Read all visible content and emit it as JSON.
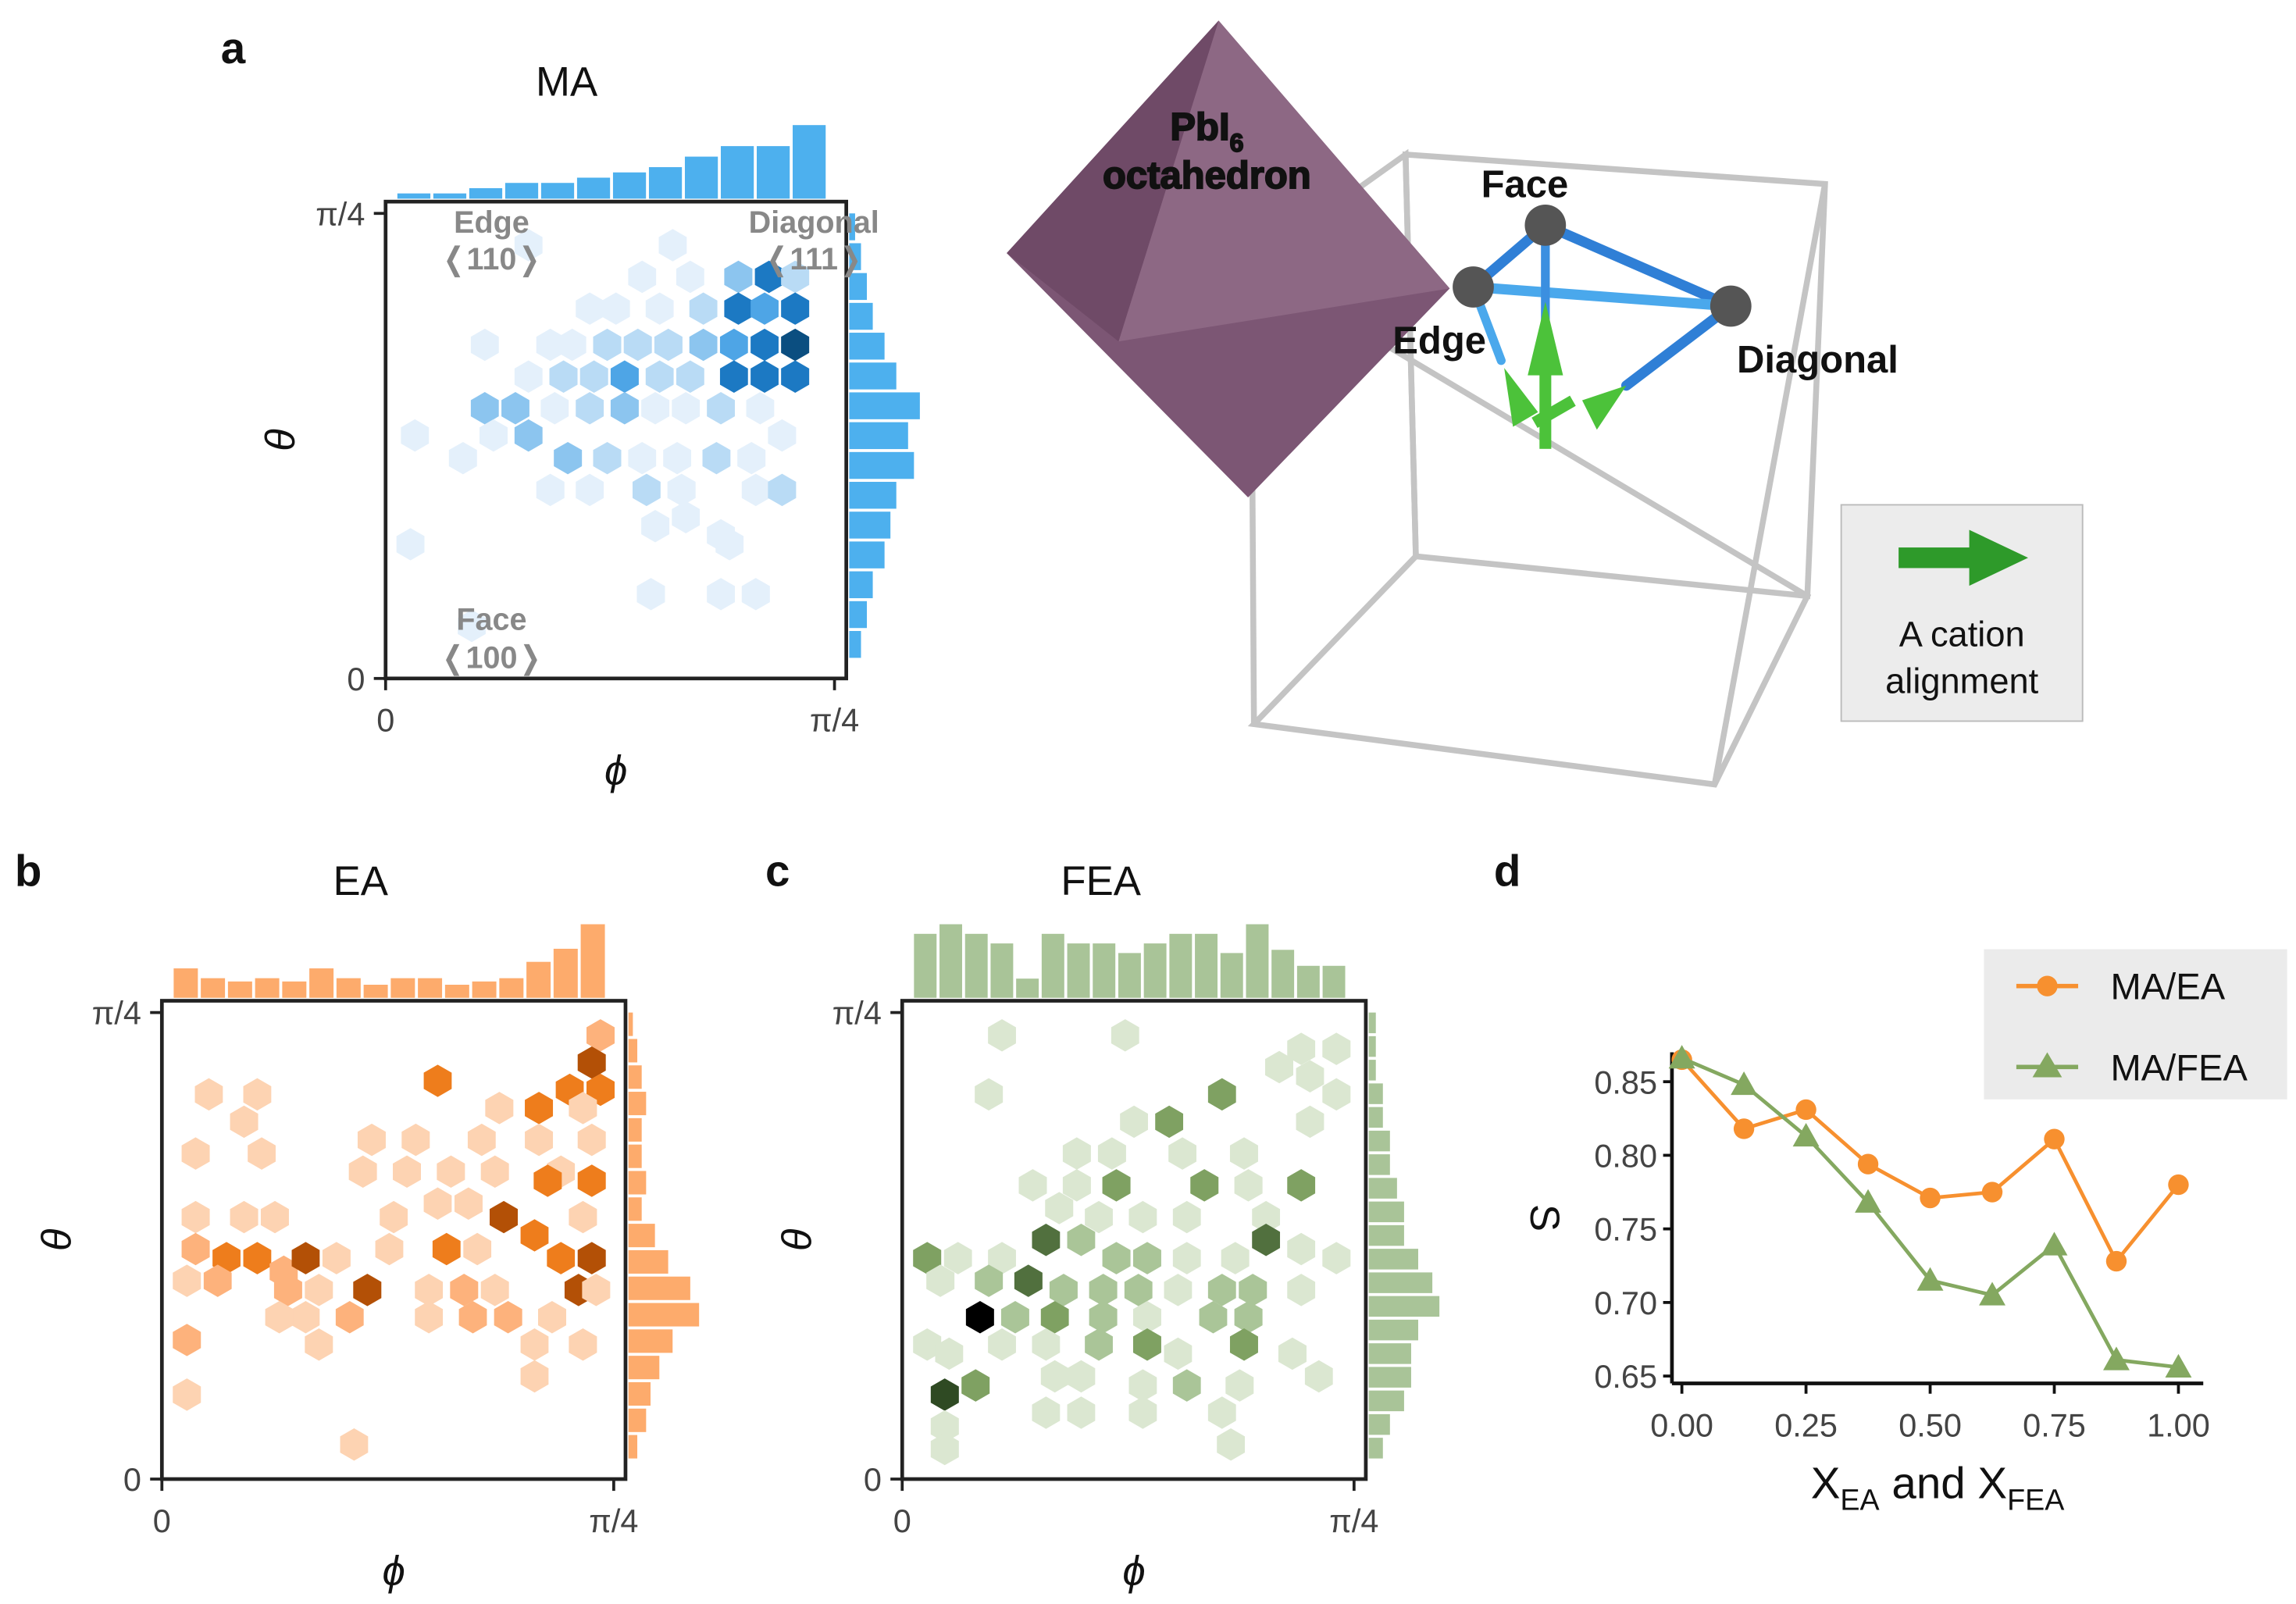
{
  "panels": {
    "a": "a",
    "b": "b",
    "c": "c",
    "d": "d"
  },
  "colors": {
    "blue": [
      "#e4f0fb",
      "#b9dbf5",
      "#8cc5ef",
      "#4ea5e6",
      "#1c79c3",
      "#0b4e80",
      "#000000"
    ],
    "orange": [
      "#fdd3b2",
      "#fdb27c",
      "#ee7d1c",
      "#b35006",
      "#6d3102",
      "#000000"
    ],
    "green": [
      "#dbe7d1",
      "#aac598",
      "#7fa162",
      "#51703e",
      "#2f4a23",
      "#000000"
    ],
    "hist_blue": "#4db0ee",
    "hist_orange": "#fdab6c",
    "hist_green": "#a9c498",
    "ma_ea": "#f7902f",
    "ma_fea": "#84a860"
  },
  "hexbin_axes": {
    "x_label": "ϕ",
    "y_label": "θ",
    "x_ticks": [
      "0",
      "π/4"
    ],
    "y_ticks": [
      "0",
      "π/4"
    ]
  },
  "panel_a": {
    "annotations": {
      "edge": "Edge",
      "edge_dir": "❬110❭",
      "diagonal": "Diagonal",
      "diagonal_dir": "❬111❭",
      "face": "Face",
      "face_dir": "❬100❭"
    }
  },
  "illustration": {
    "octahedron_label": "PbI",
    "octahedron_sub": "6",
    "octahedron_label2": "octahedron",
    "face": "Face",
    "edge": "Edge",
    "diagonal": "Diagonal",
    "legend_line1": "A cation",
    "legend_line2": "alignment"
  },
  "chart_data": [
    {
      "type": "heatmap",
      "title": "MA",
      "x_range": [
        0,
        0.785
      ],
      "y_range": [
        0,
        0.785
      ],
      "cells_fraction_of_range": [
        [
          0.3,
          0.93,
          1
        ],
        [
          0.63,
          0.93,
          1
        ],
        [
          0.56,
          0.86,
          1
        ],
        [
          0.67,
          0.86,
          1
        ],
        [
          0.78,
          0.86,
          3
        ],
        [
          0.85,
          0.86,
          5
        ],
        [
          0.91,
          0.86,
          2
        ],
        [
          0.6,
          0.79,
          1
        ],
        [
          0.7,
          0.79,
          2
        ],
        [
          0.78,
          0.79,
          5
        ],
        [
          0.84,
          0.79,
          4
        ],
        [
          0.91,
          0.79,
          5
        ],
        [
          0.5,
          0.79,
          1
        ],
        [
          0.44,
          0.79,
          1
        ],
        [
          0.2,
          0.71,
          1
        ],
        [
          0.4,
          0.71,
          1
        ],
        [
          0.48,
          0.71,
          2
        ],
        [
          0.55,
          0.71,
          2
        ],
        [
          0.62,
          0.71,
          2
        ],
        [
          0.7,
          0.71,
          3
        ],
        [
          0.77,
          0.71,
          4
        ],
        [
          0.84,
          0.71,
          5
        ],
        [
          0.91,
          0.71,
          6
        ],
        [
          0.35,
          0.71,
          1
        ],
        [
          0.2,
          0.57,
          3
        ],
        [
          0.3,
          0.64,
          1
        ],
        [
          0.38,
          0.64,
          2
        ],
        [
          0.45,
          0.64,
          2
        ],
        [
          0.52,
          0.64,
          4
        ],
        [
          0.6,
          0.64,
          2
        ],
        [
          0.67,
          0.64,
          2
        ],
        [
          0.77,
          0.64,
          5
        ],
        [
          0.84,
          0.64,
          5
        ],
        [
          0.91,
          0.64,
          5
        ],
        [
          0.27,
          0.57,
          3
        ],
        [
          0.36,
          0.57,
          1
        ],
        [
          0.44,
          0.57,
          2
        ],
        [
          0.52,
          0.57,
          3
        ],
        [
          0.59,
          0.57,
          1
        ],
        [
          0.66,
          0.57,
          1
        ],
        [
          0.74,
          0.57,
          2
        ],
        [
          0.83,
          0.57,
          1
        ],
        [
          0.04,
          0.51,
          1
        ],
        [
          0.15,
          0.46,
          1
        ],
        [
          0.22,
          0.51,
          1
        ],
        [
          0.3,
          0.51,
          3
        ],
        [
          0.39,
          0.46,
          3
        ],
        [
          0.48,
          0.46,
          2
        ],
        [
          0.56,
          0.46,
          1
        ],
        [
          0.64,
          0.46,
          1
        ],
        [
          0.73,
          0.46,
          2
        ],
        [
          0.81,
          0.46,
          1
        ],
        [
          0.88,
          0.51,
          1
        ],
        [
          0.35,
          0.39,
          1
        ],
        [
          0.44,
          0.39,
          1
        ],
        [
          0.57,
          0.39,
          2
        ],
        [
          0.65,
          0.39,
          1
        ],
        [
          0.82,
          0.39,
          1
        ],
        [
          0.88,
          0.39,
          2
        ],
        [
          0.66,
          0.33,
          1
        ],
        [
          0.59,
          0.31,
          1
        ],
        [
          0.74,
          0.29,
          1
        ],
        [
          0.03,
          0.27,
          1
        ],
        [
          0.76,
          0.27,
          1
        ],
        [
          0.58,
          0.16,
          1
        ],
        [
          0.74,
          0.16,
          1
        ],
        [
          0.82,
          0.16,
          1
        ],
        [
          0.17,
          0.09,
          1
        ]
      ],
      "hist_top": [
        1,
        1,
        2,
        3,
        3,
        4,
        5,
        6,
        8,
        10,
        10,
        14
      ],
      "hist_right": [
        1,
        2,
        3,
        4,
        6,
        8,
        12,
        10,
        11,
        8,
        7,
        6,
        4,
        3,
        2
      ]
    },
    {
      "type": "heatmap",
      "title": "EA",
      "x_range": [
        0,
        0.785
      ],
      "y_range": [
        0,
        0.785
      ],
      "cells_fraction_of_range": [
        [
          0.97,
          0.95,
          2
        ],
        [
          0.95,
          0.89,
          4
        ],
        [
          0.6,
          0.85,
          3
        ],
        [
          0.08,
          0.82,
          1
        ],
        [
          0.19,
          0.82,
          1
        ],
        [
          0.9,
          0.83,
          3
        ],
        [
          0.97,
          0.83,
          3
        ],
        [
          0.16,
          0.76,
          1
        ],
        [
          0.74,
          0.79,
          1
        ],
        [
          0.83,
          0.79,
          3
        ],
        [
          0.93,
          0.79,
          1
        ],
        [
          0.05,
          0.69,
          1
        ],
        [
          0.2,
          0.69,
          1
        ],
        [
          0.45,
          0.72,
          1
        ],
        [
          0.55,
          0.72,
          1
        ],
        [
          0.7,
          0.72,
          1
        ],
        [
          0.83,
          0.72,
          1
        ],
        [
          0.95,
          0.72,
          1
        ],
        [
          0.43,
          0.65,
          1
        ],
        [
          0.53,
          0.65,
          1
        ],
        [
          0.63,
          0.65,
          1
        ],
        [
          0.73,
          0.65,
          1
        ],
        [
          0.88,
          0.65,
          1
        ],
        [
          0.95,
          0.63,
          3
        ],
        [
          0.85,
          0.63,
          3
        ],
        [
          0.05,
          0.55,
          1
        ],
        [
          0.16,
          0.55,
          1
        ],
        [
          0.23,
          0.55,
          1
        ],
        [
          0.5,
          0.55,
          1
        ],
        [
          0.6,
          0.58,
          1
        ],
        [
          0.67,
          0.58,
          1
        ],
        [
          0.75,
          0.55,
          4
        ],
        [
          0.82,
          0.51,
          3
        ],
        [
          0.93,
          0.55,
          1
        ],
        [
          0.05,
          0.48,
          2
        ],
        [
          0.12,
          0.46,
          3
        ],
        [
          0.19,
          0.46,
          3
        ],
        [
          0.25,
          0.43,
          2
        ],
        [
          0.3,
          0.46,
          4
        ],
        [
          0.37,
          0.46,
          1
        ],
        [
          0.49,
          0.48,
          1
        ],
        [
          0.62,
          0.48,
          3
        ],
        [
          0.69,
          0.48,
          1
        ],
        [
          0.88,
          0.46,
          3
        ],
        [
          0.95,
          0.46,
          4
        ],
        [
          0.03,
          0.41,
          1
        ],
        [
          0.1,
          0.41,
          2
        ],
        [
          0.26,
          0.39,
          2
        ],
        [
          0.33,
          0.39,
          1
        ],
        [
          0.44,
          0.39,
          4
        ],
        [
          0.58,
          0.39,
          1
        ],
        [
          0.66,
          0.39,
          2
        ],
        [
          0.73,
          0.39,
          1
        ],
        [
          0.92,
          0.39,
          4
        ],
        [
          0.96,
          0.39,
          1
        ],
        [
          0.3,
          0.33,
          1
        ],
        [
          0.4,
          0.33,
          2
        ],
        [
          0.24,
          0.33,
          1
        ],
        [
          0.58,
          0.33,
          1
        ],
        [
          0.68,
          0.33,
          2
        ],
        [
          0.76,
          0.33,
          2
        ],
        [
          0.86,
          0.33,
          1
        ],
        [
          0.03,
          0.28,
          2
        ],
        [
          0.33,
          0.27,
          1
        ],
        [
          0.82,
          0.27,
          1
        ],
        [
          0.93,
          0.27,
          1
        ],
        [
          0.82,
          0.2,
          1
        ],
        [
          0.03,
          0.16,
          1
        ],
        [
          0.41,
          0.05,
          1
        ]
      ],
      "hist_top": [
        18,
        12,
        10,
        12,
        10,
        18,
        12,
        8,
        12,
        12,
        8,
        10,
        12,
        22,
        30,
        45
      ],
      "hist_right": [
        1,
        2,
        3,
        4,
        3,
        3,
        4,
        3,
        6,
        9,
        14,
        16,
        10,
        7,
        5,
        4,
        2
      ]
    },
    {
      "type": "heatmap",
      "title": "FEA",
      "x_range": [
        0,
        0.785
      ],
      "y_range": [
        0,
        0.785
      ],
      "cells_fraction_of_range": [
        [
          0.2,
          0.95,
          1
        ],
        [
          0.48,
          0.95,
          1
        ],
        [
          0.88,
          0.92,
          1
        ],
        [
          0.96,
          0.92,
          1
        ],
        [
          0.83,
          0.88,
          1
        ],
        [
          0.9,
          0.86,
          1
        ],
        [
          0.17,
          0.82,
          1
        ],
        [
          0.7,
          0.82,
          3
        ],
        [
          0.96,
          0.82,
          1
        ],
        [
          0.5,
          0.76,
          1
        ],
        [
          0.58,
          0.76,
          3
        ],
        [
          0.9,
          0.76,
          1
        ],
        [
          0.37,
          0.69,
          1
        ],
        [
          0.45,
          0.69,
          1
        ],
        [
          0.61,
          0.69,
          1
        ],
        [
          0.75,
          0.69,
          1
        ],
        [
          0.27,
          0.62,
          1
        ],
        [
          0.37,
          0.62,
          1
        ],
        [
          0.46,
          0.62,
          3
        ],
        [
          0.66,
          0.62,
          3
        ],
        [
          0.76,
          0.62,
          1
        ],
        [
          0.88,
          0.62,
          3
        ],
        [
          0.33,
          0.57,
          1
        ],
        [
          0.42,
          0.55,
          1
        ],
        [
          0.52,
          0.55,
          1
        ],
        [
          0.62,
          0.55,
          1
        ],
        [
          0.8,
          0.55,
          1
        ],
        [
          0.03,
          0.46,
          3
        ],
        [
          0.1,
          0.46,
          1
        ],
        [
          0.2,
          0.46,
          1
        ],
        [
          0.3,
          0.5,
          4
        ],
        [
          0.38,
          0.5,
          2
        ],
        [
          0.46,
          0.46,
          2
        ],
        [
          0.53,
          0.46,
          2
        ],
        [
          0.62,
          0.46,
          1
        ],
        [
          0.73,
          0.46,
          1
        ],
        [
          0.8,
          0.5,
          4
        ],
        [
          0.88,
          0.48,
          1
        ],
        [
          0.96,
          0.46,
          1
        ],
        [
          0.06,
          0.41,
          1
        ],
        [
          0.17,
          0.41,
          2
        ],
        [
          0.26,
          0.41,
          4
        ],
        [
          0.34,
          0.39,
          2
        ],
        [
          0.43,
          0.39,
          2
        ],
        [
          0.51,
          0.39,
          2
        ],
        [
          0.6,
          0.39,
          1
        ],
        [
          0.7,
          0.39,
          2
        ],
        [
          0.77,
          0.39,
          2
        ],
        [
          0.88,
          0.39,
          1
        ],
        [
          0.15,
          0.33,
          6
        ],
        [
          0.23,
          0.33,
          2
        ],
        [
          0.32,
          0.33,
          3
        ],
        [
          0.43,
          0.33,
          2
        ],
        [
          0.53,
          0.33,
          1
        ],
        [
          0.68,
          0.33,
          2
        ],
        [
          0.76,
          0.33,
          2
        ],
        [
          0.03,
          0.27,
          1
        ],
        [
          0.08,
          0.25,
          1
        ],
        [
          0.2,
          0.27,
          1
        ],
        [
          0.3,
          0.27,
          1
        ],
        [
          0.42,
          0.27,
          2
        ],
        [
          0.53,
          0.27,
          3
        ],
        [
          0.6,
          0.25,
          1
        ],
        [
          0.75,
          0.27,
          3
        ],
        [
          0.86,
          0.25,
          1
        ],
        [
          0.07,
          0.16,
          5
        ],
        [
          0.14,
          0.18,
          3
        ],
        [
          0.32,
          0.2,
          1
        ],
        [
          0.38,
          0.2,
          1
        ],
        [
          0.52,
          0.18,
          1
        ],
        [
          0.62,
          0.18,
          2
        ],
        [
          0.74,
          0.18,
          1
        ],
        [
          0.92,
          0.2,
          1
        ],
        [
          0.07,
          0.09,
          1
        ],
        [
          0.3,
          0.12,
          1
        ],
        [
          0.38,
          0.12,
          1
        ],
        [
          0.52,
          0.12,
          1
        ],
        [
          0.7,
          0.12,
          1
        ],
        [
          0.07,
          0.04,
          1
        ],
        [
          0.72,
          0.05,
          1
        ]
      ],
      "hist_top": [
        20,
        23,
        20,
        17,
        6,
        20,
        17,
        17,
        14,
        17,
        20,
        20,
        14,
        23,
        15,
        10,
        10
      ],
      "hist_right": [
        1,
        1,
        1,
        2,
        2,
        3,
        3,
        4,
        5,
        5,
        7,
        9,
        10,
        7,
        6,
        6,
        5,
        3,
        2
      ]
    },
    {
      "type": "line",
      "xlabel": "X",
      "xlabel_sub1": "EA",
      "xlabel_mid": " and X",
      "xlabel_sub2": "FEA",
      "ylabel": "S",
      "x": [
        0,
        0.125,
        0.25,
        0.375,
        0.5,
        0.625,
        0.75,
        0.875,
        1.0
      ],
      "xlim": [
        -0.02,
        1.05
      ],
      "ylim": [
        0.645,
        0.87
      ],
      "x_ticks": [
        "0.00",
        "0.25",
        "0.50",
        "0.75",
        "1.00"
      ],
      "x_tick_values": [
        0,
        0.25,
        0.5,
        0.75,
        1
      ],
      "y_ticks": [
        "0.65",
        "0.70",
        "0.75",
        "0.80",
        "0.85"
      ],
      "y_tick_values": [
        0.65,
        0.7,
        0.75,
        0.8,
        0.85
      ],
      "legend_position": "top-right",
      "series": [
        {
          "name": "MA/EA",
          "marker": "circle",
          "values": [
            0.865,
            0.818,
            0.831,
            0.794,
            0.771,
            0.775,
            0.811,
            0.728,
            0.78
          ]
        },
        {
          "name": "MA/FEA",
          "marker": "triangle",
          "values": [
            0.866,
            0.848,
            0.813,
            0.768,
            0.715,
            0.705,
            0.739,
            0.661,
            0.656
          ]
        }
      ]
    }
  ]
}
